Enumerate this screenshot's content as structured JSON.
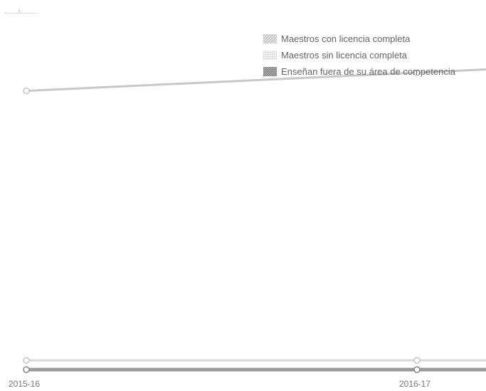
{
  "header": {
    "mini_label": "........l.........."
  },
  "chart_data": {
    "type": "line",
    "title": "",
    "xlabel": "",
    "ylabel": "",
    "x": [
      "2015-16",
      "2016-17"
    ],
    "ylim": [
      0,
      100
    ],
    "grid": false,
    "legend_position": "top-right",
    "series": [
      {
        "name": "Maestros con licencia completa",
        "values": [
          93.4,
          99.5
        ],
        "color": "#c8c8c8",
        "pattern": "hatched-light"
      },
      {
        "name": "Maestros sin licencia completa",
        "values": [
          3.1,
          3.1
        ],
        "color": "#d9d9d9",
        "pattern": "dotted-light"
      },
      {
        "name": "Enseñan fuera de su área de competencia",
        "values": [
          0.0,
          0.0
        ],
        "color": "#9a9a9a",
        "pattern": "hatched-dark"
      }
    ]
  }
}
